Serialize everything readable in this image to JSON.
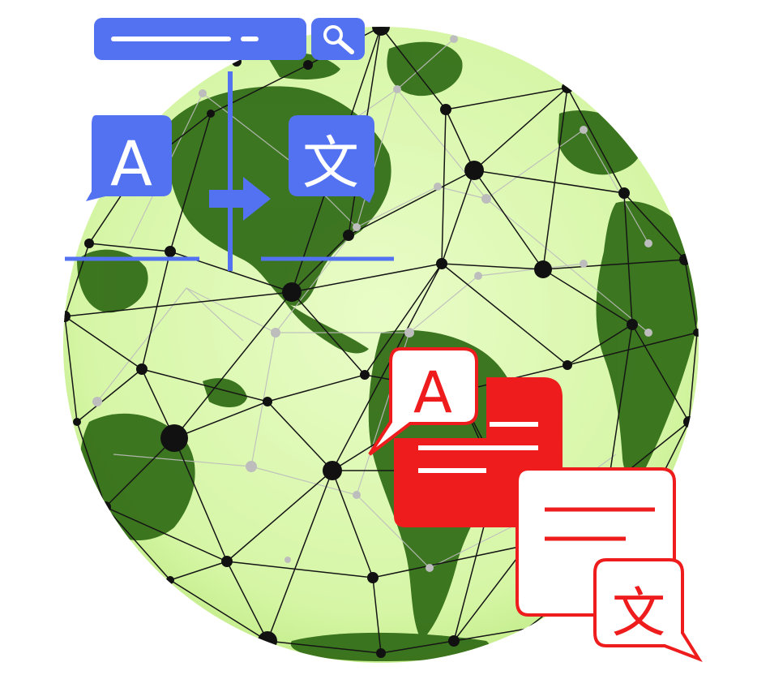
{
  "illustration": {
    "colors": {
      "ocean": "#dff8b4",
      "land": "#2f6a14",
      "network": "#111111",
      "network_light": "#b8b8b8",
      "blue": "#5272f2",
      "red": "#ee1c1c",
      "white": "#ffffff"
    },
    "source_glyph": "A",
    "target_glyph": "文",
    "icons": [
      "globe-icon",
      "network-mesh-icon",
      "search-icon",
      "arrow-right-icon",
      "translate-bubble-icon",
      "document-icon"
    ]
  }
}
